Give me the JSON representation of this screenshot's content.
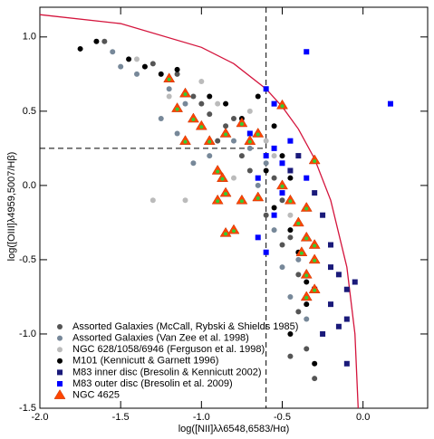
{
  "chart_data": {
    "type": "scatter",
    "x_label": "log([NII]λλ6548,6583/Hα)",
    "y_label": "log([OIII]λ4959,5007/Hβ)",
    "xlim": [
      -2.0,
      0.4
    ],
    "ylim": [
      -1.5,
      1.2
    ],
    "xticks": [
      {
        "value": -2.0,
        "label": "-2.0"
      },
      {
        "value": -1.5,
        "label": "-1.5"
      },
      {
        "value": -1.0,
        "label": "-1.0"
      },
      {
        "value": -0.5,
        "label": "-0.5"
      },
      {
        "value": 0.0,
        "label": "0.0"
      }
    ],
    "yticks": [
      {
        "value": -1.5,
        "label": "-1.5"
      },
      {
        "value": -1.0,
        "label": "-1.0"
      },
      {
        "value": -0.5,
        "label": "-0.5"
      },
      {
        "value": 0.0,
        "label": "0.0"
      },
      {
        "value": 0.5,
        "label": "0.5"
      },
      {
        "value": 1.0,
        "label": "1.0"
      }
    ],
    "legend": "lower left",
    "curve": {
      "color": "#d4143c",
      "x": [
        -2.0,
        -1.5,
        -1.0,
        -0.8,
        -0.6,
        -0.5,
        -0.4,
        -0.3,
        -0.2,
        -0.1,
        -0.05,
        -0.03
      ],
      "y": [
        1.15,
        1.09,
        0.93,
        0.82,
        0.65,
        0.53,
        0.38,
        0.18,
        -0.1,
        -0.55,
        -1.0,
        -1.5
      ]
    },
    "dashed": {
      "vx": -0.6,
      "hy": 0.25
    },
    "series": [
      {
        "name": "Assorted Galaxies (McCall, Rybski & Shields 1985)",
        "color": "#555555",
        "marker": "circle",
        "x": [
          -1.6,
          -1.3,
          -1.15,
          -1.05,
          -0.95,
          -0.9,
          -0.8,
          -0.75,
          -0.7,
          -0.65,
          -0.55,
          -0.5,
          -0.45,
          -0.4,
          -0.4,
          -0.35,
          -0.3,
          -0.45,
          -0.85,
          -1.0,
          -0.6,
          -0.5
        ],
        "values": [
          0.97,
          0.82,
          0.75,
          0.6,
          0.48,
          0.3,
          0.45,
          0.2,
          0.1,
          0.35,
          0.05,
          -0.1,
          -0.35,
          -0.6,
          -0.85,
          -1.1,
          -1.3,
          -1.15,
          0.4,
          0.55,
          -0.2,
          -0.4
        ]
      },
      {
        "name": "Assorted Galaxies (Van Zee et al. 1998)",
        "color": "#778899",
        "marker": "circle",
        "x": [
          -1.55,
          -1.5,
          -1.4,
          -1.2,
          -1.1,
          -1.0,
          -0.95,
          -0.9,
          -0.85,
          -0.8,
          -0.7,
          -0.65,
          -0.6,
          -0.55,
          -0.5,
          -0.45,
          -0.35,
          -0.4,
          -1.05,
          -1.15,
          -0.75,
          -1.25
        ],
        "values": [
          0.9,
          0.8,
          0.75,
          0.65,
          0.55,
          0.4,
          0.2,
          0.1,
          -0.05,
          0.3,
          0.25,
          0.0,
          0.15,
          -0.3,
          -0.55,
          -0.75,
          -0.9,
          -0.5,
          0.15,
          0.35,
          -0.1,
          0.45
        ]
      },
      {
        "name": "NGC 628/1058/6946 (Ferguson et al. 1998)",
        "color": "#bbbbbb",
        "marker": "circle",
        "x": [
          -1.4,
          -1.2,
          -1.0,
          -0.9,
          -1.1,
          -0.7,
          -0.6,
          -0.55,
          -0.45,
          -0.4,
          -1.3,
          -0.8
        ],
        "values": [
          0.85,
          0.6,
          0.7,
          0.55,
          -0.1,
          0.5,
          0.3,
          0.2,
          -0.2,
          -0.45,
          -0.1,
          0.05
        ]
      },
      {
        "name": "M101 (Kennicutt & Garnett 1996)",
        "color": "#000000",
        "marker": "circle",
        "x": [
          -1.75,
          -1.65,
          -1.45,
          -1.35,
          -1.25,
          -1.15,
          -0.95,
          -0.85,
          -0.75,
          -0.7,
          -0.65,
          -0.55,
          -0.5,
          -0.45,
          -0.45,
          -0.4,
          -0.35,
          -0.35,
          -0.3,
          -0.45,
          -0.55,
          -0.6
        ],
        "values": [
          0.92,
          0.97,
          0.85,
          0.8,
          0.75,
          0.78,
          0.6,
          0.55,
          0.45,
          0.3,
          0.6,
          0.4,
          0.2,
          0.05,
          -0.3,
          -0.45,
          -0.65,
          -0.8,
          -1.2,
          -1.0,
          -0.15,
          0.1
        ]
      },
      {
        "name": "M83 inner disc (Bresolin & Kennicutt 2002)",
        "color": "#1a1a7a",
        "marker": "square",
        "x": [
          -0.3,
          -0.25,
          -0.2,
          -0.2,
          -0.15,
          -0.1,
          -0.1,
          -0.15,
          -0.2,
          -0.05,
          -0.3,
          -0.25,
          -0.1,
          -0.4,
          -0.45
        ],
        "values": [
          -0.05,
          -0.2,
          -0.4,
          -0.55,
          -0.6,
          -0.7,
          -0.9,
          -0.95,
          -0.8,
          -0.65,
          -0.7,
          -1.0,
          -1.2,
          0.2,
          0.1
        ]
      },
      {
        "name": "M83 outer disc (Bresolin et al. 2009)",
        "color": "#0000ff",
        "marker": "square",
        "x": [
          -0.35,
          0.17,
          -0.6,
          -0.55,
          -0.55,
          -0.6,
          -0.5,
          -0.65,
          -0.55,
          -0.65,
          -0.6,
          -0.5,
          -0.45,
          -0.35,
          -0.7
        ],
        "values": [
          0.9,
          0.55,
          0.65,
          0.55,
          0.25,
          0.2,
          0.15,
          0.05,
          -0.2,
          -0.35,
          -0.45,
          -0.05,
          0.3,
          0.05,
          0.35
        ]
      },
      {
        "name": "NGC 4625",
        "color": "#ff4500",
        "marker": "triangle",
        "x": [
          -1.2,
          -1.1,
          -1.15,
          -1.05,
          -1.0,
          -0.85,
          -0.75,
          -0.7,
          -0.65,
          -1.1,
          -0.95,
          -0.9,
          -0.87,
          -0.85,
          -0.75,
          -0.65,
          -0.9,
          -0.8,
          -0.85,
          -0.5,
          -0.3,
          -0.5,
          -0.45,
          -0.35,
          -0.4,
          -0.35,
          -0.3,
          -0.3,
          -0.35,
          -0.3,
          -0.38,
          -0.35
        ],
        "values": [
          0.72,
          0.62,
          0.52,
          0.45,
          0.4,
          0.35,
          0.42,
          0.3,
          0.35,
          0.3,
          0.3,
          0.1,
          0.05,
          -0.05,
          -0.1,
          -0.08,
          -0.1,
          -0.3,
          -0.32,
          0.54,
          0.17,
          0.0,
          -0.1,
          -0.15,
          -0.25,
          -0.35,
          -0.4,
          -0.5,
          -0.6,
          -0.7,
          -0.45,
          -0.75
        ]
      }
    ]
  }
}
